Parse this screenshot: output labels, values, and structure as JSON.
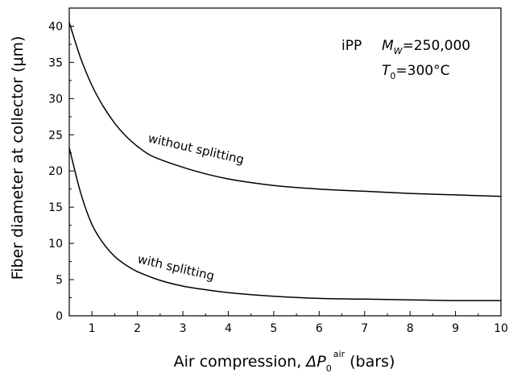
{
  "chart_data": {
    "type": "line",
    "title": "",
    "xlabel": {
      "prefix": "Air compression, ",
      "symbol": "ΔP",
      "subscript": "0",
      "superscript": "air",
      "suffix": " (bars)"
    },
    "ylabel": "Fiber diameter at collector (μm)",
    "xlim": [
      0.5,
      10
    ],
    "ylim": [
      0,
      42.5
    ],
    "xticks": [
      1,
      2,
      3,
      4,
      5,
      6,
      7,
      8,
      9,
      10
    ],
    "yticks": [
      0,
      5,
      10,
      15,
      20,
      25,
      30,
      35,
      40
    ],
    "grid": false,
    "annotations": {
      "polymer": "iPP",
      "mw_symbol": "M",
      "mw_subscript": "W",
      "mw_value": "=250,000",
      "t_symbol": "T",
      "t_subscript": "0",
      "t_value": "=300°C"
    },
    "series": [
      {
        "name": "without splitting",
        "x": [
          0.5,
          0.75,
          1.0,
          1.25,
          1.5,
          1.75,
          2.0,
          2.25,
          2.5,
          3.0,
          3.5,
          4.0,
          4.5,
          5.0,
          6.0,
          7.0,
          8.0,
          9.0,
          10.0
        ],
        "y": [
          40.5,
          35.6,
          31.8,
          28.9,
          26.6,
          24.8,
          23.4,
          22.3,
          21.6,
          20.5,
          19.6,
          18.9,
          18.4,
          18.0,
          17.5,
          17.2,
          16.9,
          16.7,
          16.5
        ]
      },
      {
        "name": "with splitting",
        "x": [
          0.5,
          0.75,
          1.0,
          1.25,
          1.5,
          1.75,
          2.0,
          2.5,
          3.0,
          3.5,
          4.0,
          5.0,
          6.0,
          7.0,
          8.0,
          9.0,
          10.0
        ],
        "y": [
          23.2,
          17.0,
          12.6,
          10.0,
          8.2,
          7.0,
          6.1,
          4.9,
          4.1,
          3.6,
          3.2,
          2.7,
          2.4,
          2.3,
          2.2,
          2.1,
          2.1
        ]
      }
    ]
  }
}
